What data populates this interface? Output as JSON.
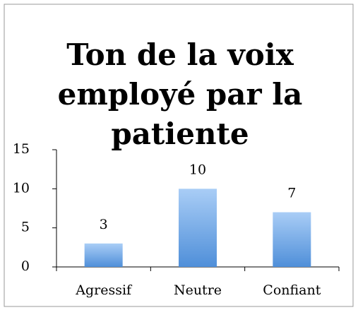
{
  "chart_data": {
    "type": "bar",
    "title": "Ton de la voix employé par la patiente",
    "categories": [
      "Agressif",
      "Neutre",
      "Confiant"
    ],
    "values": [
      3,
      10,
      7
    ],
    "color": "#6fa6e6",
    "ylim": [
      0,
      15
    ],
    "yticks": [
      0,
      5,
      10,
      15
    ],
    "data_labels": true
  }
}
